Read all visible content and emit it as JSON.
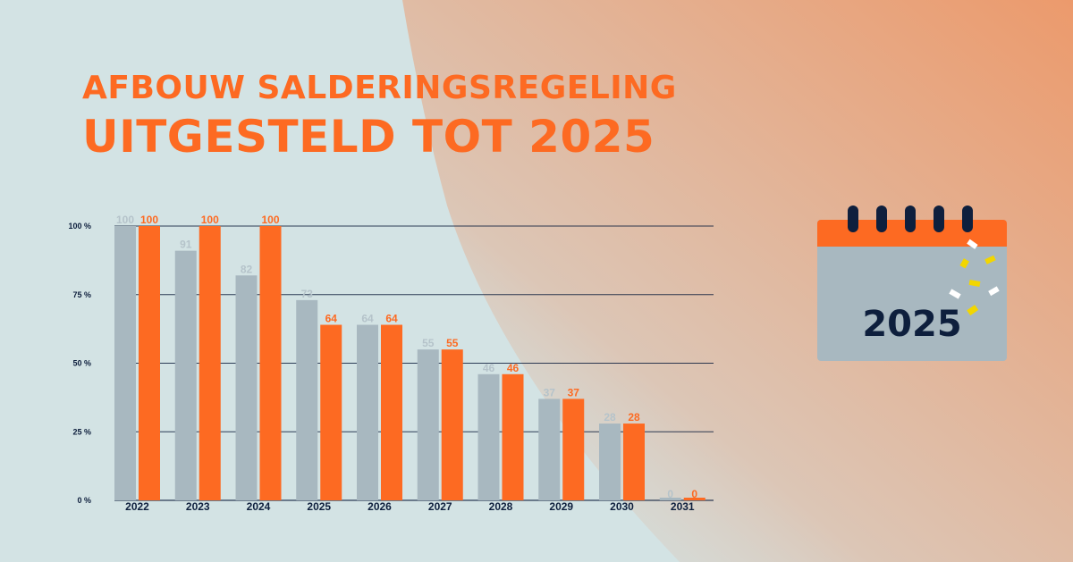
{
  "header": {
    "title_line1": "AFBOUW SALDERINGSREGELING",
    "title_line2": "UITGESTELD TOT 2025"
  },
  "calendar": {
    "year": "2025",
    "icon": "calendar-icon"
  },
  "colors": {
    "background": "#d3e3e4",
    "accent_orange": "#fd6a22",
    "bar_grey": "#a8b8c0",
    "navy": "#0e1f3d",
    "confetti_yellow": "#f2d600"
  },
  "chart_data": {
    "type": "bar",
    "categories": [
      "2022",
      "2023",
      "2024",
      "2025",
      "2026",
      "2027",
      "2028",
      "2029",
      "2030",
      "2031"
    ],
    "series": [
      {
        "color": "#a8b8c0",
        "label_color": "#b5c3ca",
        "values": [
          100,
          91,
          82,
          73,
          64,
          55,
          46,
          37,
          28,
          0
        ]
      },
      {
        "color": "#fd6a22",
        "label_color": "#fd6a22",
        "values": [
          100,
          100,
          100,
          64,
          64,
          55,
          46,
          37,
          28,
          0
        ]
      }
    ],
    "y_ticks": [
      "0 %",
      "25 %",
      "50 %",
      "75 %",
      "100 %"
    ],
    "ylim": [
      0,
      100
    ],
    "grid": true
  }
}
